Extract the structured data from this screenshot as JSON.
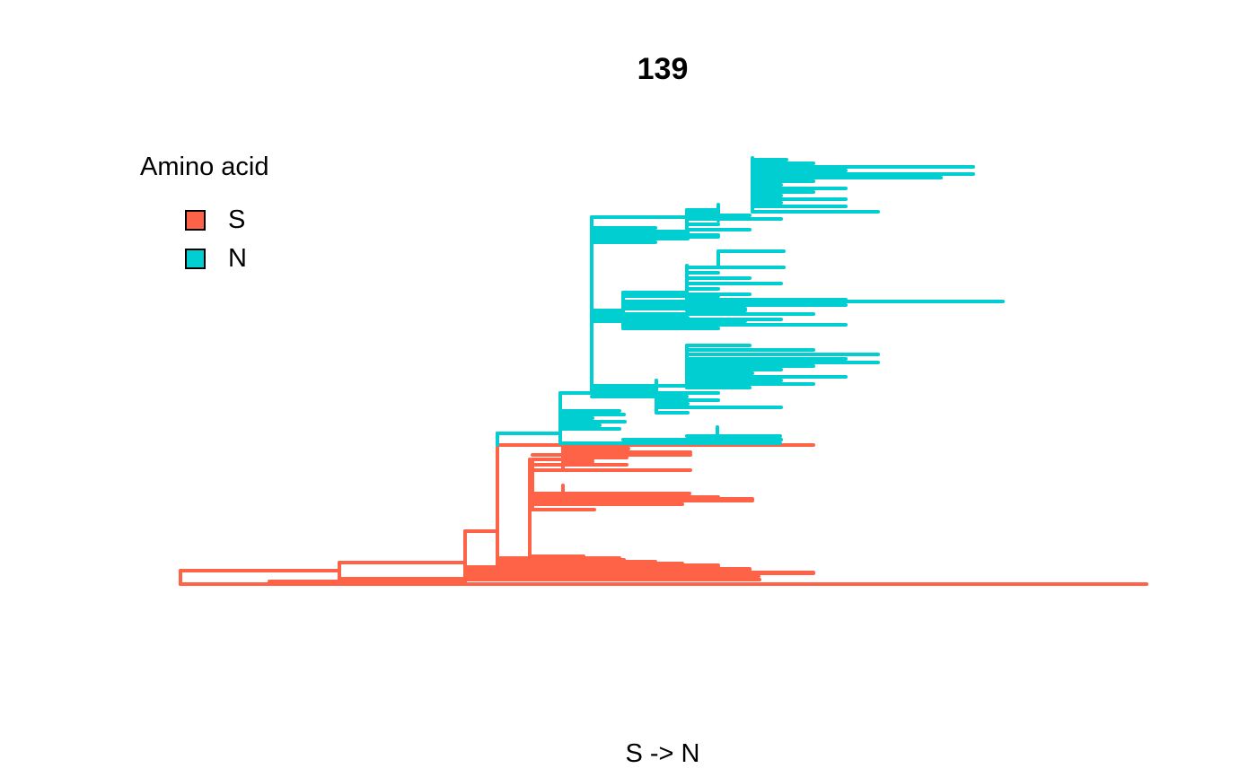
{
  "title": "139",
  "caption": "S -> N",
  "legend": {
    "title": "Amino acid",
    "items": [
      {
        "label": "S",
        "color": "#ff6347"
      },
      {
        "label": "N",
        "color": "#00ced1"
      }
    ]
  }
}
